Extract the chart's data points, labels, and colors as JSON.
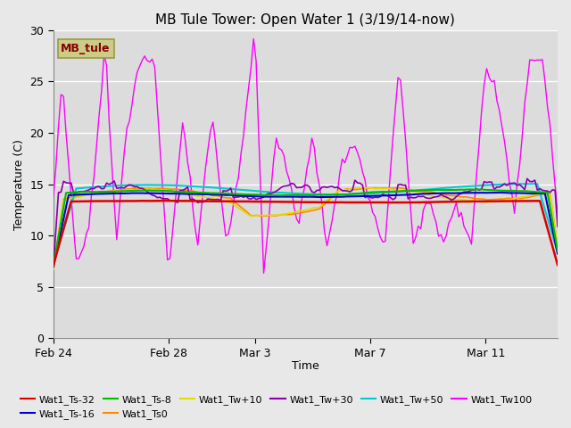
{
  "title": "MB Tule Tower: Open Water 1 (3/19/14-now)",
  "xlabel": "Time",
  "ylabel": "Temperature (C)",
  "ylim": [
    0,
    30
  ],
  "yticks": [
    0,
    5,
    10,
    15,
    20,
    25,
    30
  ],
  "xtick_labels": [
    "Feb 24",
    "Feb 28",
    "Mar 3",
    "Mar 7",
    "Mar 11"
  ],
  "xtick_positions": [
    0,
    4,
    7,
    11,
    15
  ],
  "xlim": [
    0,
    17.5
  ],
  "background_color": "#e8e8e8",
  "plot_bg_color": "#dcdcdc",
  "grid_color": "#ffffff",
  "series_colors": {
    "Wat1_Ts-32": "#dd0000",
    "Wat1_Ts-16": "#0000cc",
    "Wat1_Ts-8": "#00bb00",
    "Wat1_Ts0": "#ff8800",
    "Wat1_Tw+10": "#dddd00",
    "Wat1_Tw+30": "#8800aa",
    "Wat1_Tw+50": "#00cccc",
    "Wat1_Tw100": "#ff00ff"
  },
  "legend_label": "MB_tule",
  "legend_box_facecolor": "#cccc88",
  "legend_box_edgecolor": "#999944",
  "legend_text_color": "#880000",
  "figsize": [
    6.4,
    4.8
  ],
  "dpi": 100
}
